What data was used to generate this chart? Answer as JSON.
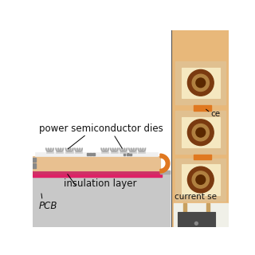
{
  "bg_color": "#ffffff",
  "left": {
    "pcb_color": "#c8c8c8",
    "pink_color": "#cc3366",
    "pink2_color": "#dd2266",
    "substrate_color": "#e8c090",
    "substrate_outline": "#c8a060",
    "conductor_top_color": "#f0f0f0",
    "conductor_outline": "#bbbbbb",
    "terminal_color": "#888888",
    "orange_end_color": "#e07820",
    "die_base_color": "#d0d0d0",
    "die_outline": "#888888",
    "wire_color": "#b0b0b0"
  },
  "right": {
    "bg_color": "#e8b87a",
    "border_color": "#b07830",
    "pad_bg_color": "#e8b87a",
    "coil_outer_bg": "#e8b87a",
    "coil_square_outer": "#e0c090",
    "coil_square_inner": "#f5e8c0",
    "coil_ring_color": "#7a3a10",
    "coil_center_color": "#5a2800",
    "orange_tab_color": "#e07820",
    "chip_color": "#484848",
    "chip_outline": "#222222",
    "pin_color": "#c8a060",
    "trace_color": "#c8a060",
    "white_bg": "#f0f0e8"
  },
  "label_fontsize": 8.5,
  "label_color": "#111111",
  "labels": {
    "psd": "power semiconductor dies",
    "ins": "insulation layer",
    "pcb": "PCB",
    "ce": "ce",
    "curr": "current se"
  }
}
